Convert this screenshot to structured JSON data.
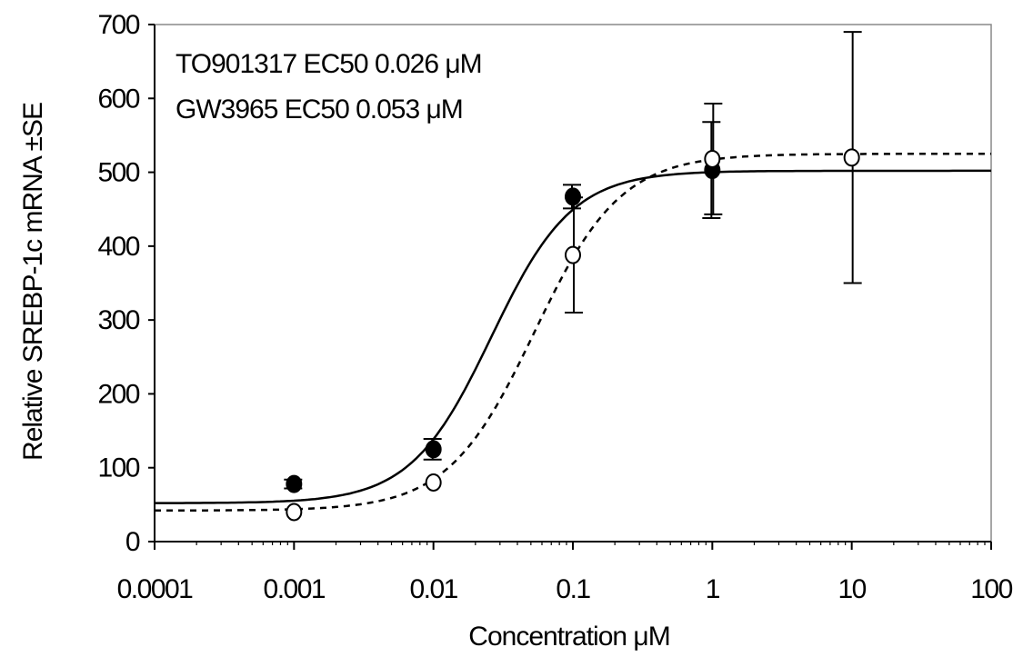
{
  "chart_data": {
    "type": "scatter",
    "xlabel": "Concentration μM",
    "ylabel": "Relative SREBP-1c mRNA ±SE",
    "x_scale": "log",
    "xlim": [
      0.0001,
      100
    ],
    "ylim": [
      0,
      700
    ],
    "x_ticks": [
      "0.0001",
      "0.001",
      "0.01",
      "0.1",
      "1",
      "10",
      "100"
    ],
    "x_tick_values": [
      0.0001,
      0.001,
      0.01,
      0.1,
      1,
      10,
      100
    ],
    "y_ticks": [
      "0",
      "100",
      "200",
      "300",
      "400",
      "500",
      "600",
      "700"
    ],
    "y_tick_values": [
      0,
      100,
      200,
      300,
      400,
      500,
      600,
      700
    ],
    "grid": false,
    "annotations": [
      "TO901317 EC50 0.026 μM",
      "GW3965 EC50 0.053 μM"
    ],
    "series": [
      {
        "marker": "filled-circle",
        "line": "solid",
        "x": [
          0.001,
          0.01,
          0.1,
          1
        ],
        "y": [
          78,
          125,
          467,
          503
        ],
        "error": [
          6,
          14,
          16,
          65
        ],
        "fit": {
          "bottom": 52,
          "top": 502,
          "ec50": 0.026,
          "hill": 1.5
        }
      },
      {
        "marker": "open-circle",
        "line": "dashed",
        "x": [
          0.001,
          0.01,
          0.1,
          1,
          10
        ],
        "y": [
          40,
          80,
          388,
          518,
          520
        ],
        "error": [
          0,
          0,
          78,
          75,
          170
        ],
        "fit": {
          "bottom": 42,
          "top": 525,
          "ec50": 0.053,
          "hill": 1.4
        }
      }
    ]
  }
}
